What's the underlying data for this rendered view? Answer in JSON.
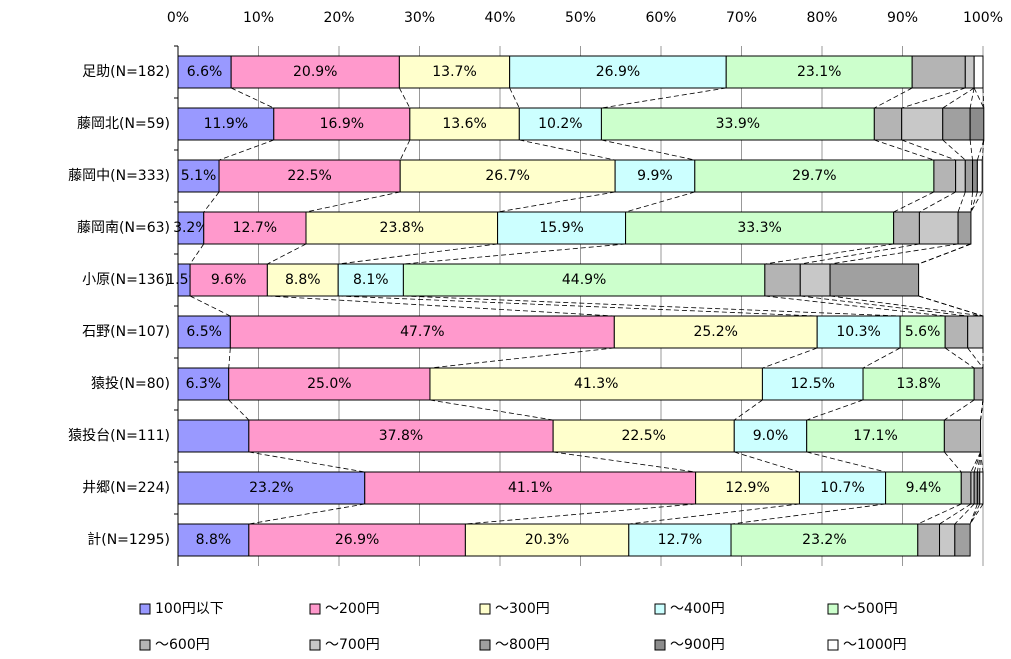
{
  "chart_data": {
    "type": "stacked-barh",
    "categories": [
      "足助(N=182)",
      "藤岡北(N=59)",
      "藤岡中(N=333)",
      "藤岡南(N=63)",
      "小原(N=136)",
      "石野(N=107)",
      "猿投(N=80)",
      "猿投台(N=111)",
      "井郷(N=224)",
      "計(N=1295)"
    ],
    "series": [
      {
        "name": "100円以下",
        "color": "#9999ff",
        "values": [
          6.6,
          11.9,
          5.1,
          3.2,
          1.5,
          6.5,
          6.3,
          8.8,
          23.2,
          8.8
        ],
        "value_labels": [
          "6.6%",
          "11.9%",
          "5.1%",
          "3.2%",
          "1.5%",
          "6.5%",
          "6.3%",
          null,
          "23.2%",
          "8.8%"
        ]
      },
      {
        "name": "～200円",
        "color": "#ff99cc",
        "values": [
          20.9,
          16.9,
          22.5,
          12.7,
          9.6,
          47.7,
          25.0,
          37.8,
          41.1,
          26.9
        ],
        "value_labels": [
          "20.9%",
          "16.9%",
          "22.5%",
          "12.7%",
          "9.6%",
          "47.7%",
          "25.0%",
          "37.8%",
          "41.1%",
          "26.9%"
        ]
      },
      {
        "name": "～300円",
        "color": "#ffffcc",
        "values": [
          13.7,
          13.6,
          26.7,
          23.8,
          8.8,
          25.2,
          41.3,
          22.5,
          12.9,
          20.3
        ],
        "value_labels": [
          "13.7%",
          "13.6%",
          "26.7%",
          "23.8%",
          "8.8%",
          "25.2%",
          "41.3%",
          "22.5%",
          "12.9%",
          "20.3%"
        ]
      },
      {
        "name": "～400円",
        "color": "#ccffff",
        "values": [
          26.9,
          10.2,
          9.9,
          15.9,
          8.1,
          10.3,
          12.5,
          9.0,
          10.7,
          12.7
        ],
        "value_labels": [
          "26.9%",
          "10.2%",
          "9.9%",
          "15.9%",
          "8.1%",
          "10.3%",
          "12.5%",
          "9.0%",
          "10.7%",
          "12.7%"
        ]
      },
      {
        "name": "～500円",
        "color": "#ccffcc",
        "values": [
          23.1,
          33.9,
          29.7,
          33.3,
          44.9,
          5.6,
          13.8,
          17.1,
          9.4,
          23.2
        ],
        "value_labels": [
          "23.1%",
          "33.9%",
          "29.7%",
          "33.3%",
          "44.9%",
          "5.6%",
          "13.8%",
          "17.1%",
          "9.4%",
          "23.2%"
        ]
      },
      {
        "name": "～600円",
        "color": "#b4b4b4",
        "values": [
          6.6,
          3.4,
          2.7,
          3.2,
          4.4,
          2.8,
          1.1,
          4.5,
          1.2,
          2.7
        ]
      },
      {
        "name": "～700円",
        "color": "#c8c8c8",
        "values": [
          1.1,
          5.1,
          1.2,
          4.8,
          3.7,
          1.9,
          0,
          0,
          0.4,
          1.9
        ]
      },
      {
        "name": "～800円",
        "color": "#a0a0a0",
        "values": [
          0,
          3.4,
          0.9,
          1.6,
          11.0,
          0,
          0,
          0,
          0.4,
          1.9
        ]
      },
      {
        "name": "～900円",
        "color": "#8c8c8c",
        "values": [
          0,
          1.7,
          0.6,
          0,
          0,
          0,
          0,
          0,
          0.3,
          0
        ]
      },
      {
        "name": "～1000円",
        "color": "#ffffff",
        "values": [
          1.1,
          0,
          0.6,
          0,
          0,
          0,
          0,
          0,
          0.4,
          0
        ]
      }
    ],
    "xlim": [
      0,
      100
    ],
    "xticks": [
      {
        "value": 0,
        "label": "0%"
      },
      {
        "value": 10,
        "label": "10%"
      },
      {
        "value": 20,
        "label": "20%"
      },
      {
        "value": 30,
        "label": "30%"
      },
      {
        "value": 40,
        "label": "40%"
      },
      {
        "value": 50,
        "label": "50%"
      },
      {
        "value": 60,
        "label": "60%"
      },
      {
        "value": 70,
        "label": "70%"
      },
      {
        "value": 80,
        "label": "80%"
      },
      {
        "value": 90,
        "label": "90%"
      },
      {
        "value": 100,
        "label": "100%"
      }
    ],
    "grid": true,
    "legend": "bottom"
  }
}
